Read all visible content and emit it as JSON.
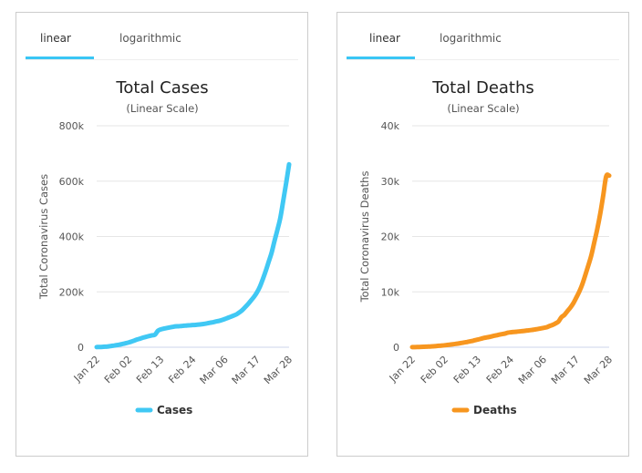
{
  "tabs": {
    "linear_label": "linear",
    "log_label": "logarithmic",
    "active": "linear"
  },
  "chart_data": [
    {
      "type": "line",
      "title": "Total Cases",
      "subtitle": "(Linear Scale)",
      "xlabel": "",
      "ylabel": "Total Coronavirus Cases",
      "ylim": [
        0,
        800000
      ],
      "yticks": [
        0,
        200000,
        400000,
        600000,
        800000
      ],
      "ytick_labels": [
        "0",
        "200k",
        "400k",
        "600k",
        "800k"
      ],
      "xtick_labels": [
        "Jan 22",
        "Feb 02",
        "Feb 13",
        "Feb 24",
        "Mar 06",
        "Mar 17",
        "Mar 28"
      ],
      "grid": true,
      "legend": "bottom-center",
      "series": [
        {
          "name": "Cases",
          "color": "#40c8f4",
          "start_date": "Jan 22",
          "values": [
            580,
            845,
            1317,
            2015,
            2800,
            4581,
            6058,
            7813,
            9823,
            11950,
            14553,
            17391,
            20630,
            24545,
            28266,
            31439,
            34876,
            37552,
            40553,
            43099,
            45134,
            59287,
            64438,
            67100,
            69197,
            71329,
            73332,
            75184,
            75700,
            76677,
            77673,
            78651,
            79205,
            80087,
            80828,
            81820,
            83112,
            84615,
            86604,
            88585,
            90443,
            93016,
            95314,
            98425,
            102050,
            106099,
            109991,
            114381,
            118948,
            126214,
            134576,
            145483,
            156653,
            169593,
            182490,
            198234,
            218822,
            246088,
            275856,
            308592,
            341335,
            383897,
            424048,
            467710,
            529591,
            593291,
            660706
          ]
        }
      ]
    },
    {
      "type": "line",
      "title": "Total Deaths",
      "subtitle": "(Linear Scale)",
      "xlabel": "",
      "ylabel": "Total Coronavirus Deaths",
      "ylim": [
        0,
        40000
      ],
      "yticks": [
        0,
        10000,
        20000,
        30000,
        40000
      ],
      "ytick_labels": [
        "0",
        "10k",
        "20k",
        "30k",
        "40k"
      ],
      "xtick_labels": [
        "Jan 22",
        "Feb 02",
        "Feb 13",
        "Feb 24",
        "Mar 06",
        "Mar 17",
        "Mar 28"
      ],
      "grid": true,
      "legend": "bottom-center",
      "series": [
        {
          "name": "Deaths",
          "color": "#f7961f",
          "start_date": "Jan 22",
          "values": [
            17,
            25,
            41,
            56,
            80,
            106,
            132,
            170,
            213,
            259,
            304,
            362,
            426,
            492,
            565,
            638,
            724,
            813,
            910,
            1018,
            1115,
            1261,
            1383,
            1526,
            1669,
            1775,
            1873,
            2009,
            2126,
            2247,
            2360,
            2460,
            2618,
            2699,
            2763,
            2800,
            2858,
            2923,
            2977,
            3050,
            3117,
            3202,
            3285,
            3387,
            3494,
            3599,
            3827,
            4025,
            4296,
            4628,
            5428,
            5833,
            6519,
            7165,
            7955,
            8982,
            10061,
            11373,
            13017,
            14753,
            16558,
            18922,
            21309,
            24101,
            27386,
            30879,
            31000
          ]
        }
      ]
    }
  ]
}
